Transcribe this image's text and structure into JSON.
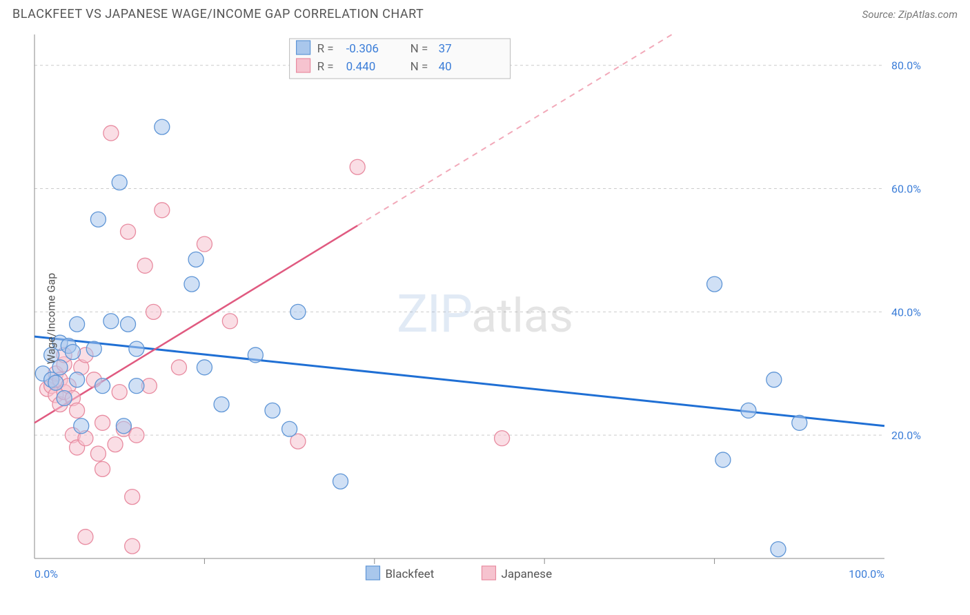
{
  "title": "BLACKFEET VS JAPANESE WAGE/INCOME GAP CORRELATION CHART",
  "source": "Source: ZipAtlas.com",
  "ylabel": "Wage/Income Gap",
  "watermark_left": "ZIP",
  "watermark_right": "atlas",
  "chart": {
    "type": "scatter",
    "background": "#ffffff",
    "grid_color": "#cccccc",
    "axis_color": "#888888",
    "label_color": "#3b7dd8",
    "xlim": [
      0,
      100
    ],
    "ylim": [
      0,
      85
    ],
    "ytick_values": [
      20,
      40,
      60,
      80
    ],
    "ytick_labels": [
      "20.0%",
      "40.0%",
      "60.0%",
      "80.0%"
    ],
    "xtick_values": [
      0,
      100
    ],
    "xtick_labels": [
      "0.0%",
      "100.0%"
    ],
    "xtick_minor": [
      20,
      40,
      60,
      80
    ],
    "marker_radius": 11,
    "series": [
      {
        "name": "Blackfeet",
        "color_fill": "#a9c7ec",
        "color_stroke": "#5e95d6",
        "reg_color": "#1f6fd4",
        "R": "-0.306",
        "N": "37",
        "reg_line": {
          "x1": 0,
          "y1": 36,
          "x2": 100,
          "y2": 21.5
        },
        "points": [
          [
            1,
            30
          ],
          [
            2,
            29
          ],
          [
            2,
            33
          ],
          [
            2.5,
            28.5
          ],
          [
            3,
            35
          ],
          [
            3,
            31
          ],
          [
            3.5,
            26
          ],
          [
            4,
            34.5
          ],
          [
            4.5,
            33.5
          ],
          [
            5,
            29
          ],
          [
            5,
            38
          ],
          [
            5.5,
            21.5
          ],
          [
            7,
            34
          ],
          [
            7.5,
            55
          ],
          [
            8,
            28
          ],
          [
            9,
            38.5
          ],
          [
            10,
            61
          ],
          [
            10.5,
            21.5
          ],
          [
            11,
            38
          ],
          [
            12,
            34
          ],
          [
            12,
            28
          ],
          [
            15,
            70
          ],
          [
            18.5,
            44.5
          ],
          [
            19,
            48.5
          ],
          [
            20,
            31
          ],
          [
            22,
            25
          ],
          [
            26,
            33
          ],
          [
            28,
            24
          ],
          [
            30,
            21
          ],
          [
            31,
            40
          ],
          [
            36,
            12.5
          ],
          [
            80,
            44.5
          ],
          [
            81,
            16
          ],
          [
            84,
            24
          ],
          [
            87,
            29
          ],
          [
            87.5,
            1.5
          ],
          [
            90,
            22
          ]
        ]
      },
      {
        "name": "Japanese",
        "color_fill": "#f6c3cf",
        "color_stroke": "#e88ba0",
        "reg_color": "#e05a80",
        "R": "0.440",
        "N": "40",
        "reg_line_solid": {
          "x1": 0,
          "y1": 22,
          "x2": 38,
          "y2": 54
        },
        "reg_line_dash": {
          "x1": 38,
          "y1": 54,
          "x2": 75,
          "y2": 85
        },
        "points": [
          [
            1.5,
            27.5
          ],
          [
            2,
            28
          ],
          [
            2.5,
            26.5
          ],
          [
            2.5,
            30
          ],
          [
            3,
            25
          ],
          [
            3,
            29
          ],
          [
            3.5,
            27
          ],
          [
            3.5,
            31.5
          ],
          [
            3.5,
            33
          ],
          [
            4,
            28
          ],
          [
            4.5,
            26
          ],
          [
            4.5,
            20
          ],
          [
            5,
            18
          ],
          [
            5,
            24
          ],
          [
            5.5,
            31
          ],
          [
            6,
            33
          ],
          [
            6,
            19.5
          ],
          [
            6,
            3.5
          ],
          [
            7,
            29
          ],
          [
            7.5,
            17
          ],
          [
            8,
            22
          ],
          [
            8,
            14.5
          ],
          [
            9,
            69
          ],
          [
            9.5,
            18.5
          ],
          [
            10,
            27
          ],
          [
            10.5,
            21
          ],
          [
            11,
            53
          ],
          [
            11.5,
            10
          ],
          [
            11.5,
            2
          ],
          [
            12,
            20
          ],
          [
            13,
            47.5
          ],
          [
            13.5,
            28
          ],
          [
            14,
            40
          ],
          [
            15,
            56.5
          ],
          [
            17,
            31
          ],
          [
            20,
            51
          ],
          [
            23,
            38.5
          ],
          [
            31,
            19
          ],
          [
            38,
            63.5
          ],
          [
            55,
            19.5
          ]
        ]
      }
    ]
  },
  "bottom_legend": [
    {
      "label": "Blackfeet",
      "swatch": "blue"
    },
    {
      "label": "Japanese",
      "swatch": "pink"
    }
  ]
}
